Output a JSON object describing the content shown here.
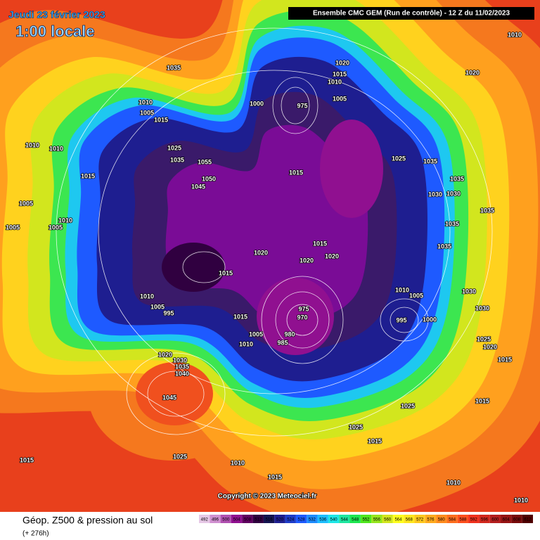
{
  "header": {
    "date": "Jeudi 23 février 2023",
    "time": "1:00 locale",
    "run": "Ensemble CMC GEM  (Run de contrôle)  - 12 Z du 11/02/2023"
  },
  "copyright": "Copyright © 2023 Meteociel.fr",
  "legend": {
    "title": "Géop. Z500 & pression au sol",
    "lead": "(+ 276h)",
    "ticks": [
      492,
      496,
      500,
      504,
      508,
      512,
      516,
      520,
      524,
      528,
      532,
      536,
      540,
      544,
      548,
      552,
      556,
      560,
      564,
      568,
      572,
      576,
      580,
      584,
      588,
      592,
      596,
      600,
      604,
      608,
      612
    ],
    "colors": [
      "#e6c8e6",
      "#d090d0",
      "#b050b0",
      "#901090",
      "#600060",
      "#300040",
      "#141450",
      "#1e1e90",
      "#1e3cc8",
      "#1e5aff",
      "#1e8cff",
      "#1ebeff",
      "#1ee6e6",
      "#1ee6a0",
      "#1ee650",
      "#50e61e",
      "#96e61e",
      "#d2e61e",
      "#ffff1e",
      "#ffe61e",
      "#ffc81e",
      "#ffaa1e",
      "#ff8c1e",
      "#ff6e1e",
      "#ff501e",
      "#f0321e",
      "#d2281e",
      "#b41e1e",
      "#961414",
      "#780a0a",
      "#500000"
    ]
  },
  "pressure_labels": [
    1010,
    1020,
    1035,
    1020,
    1015,
    1010,
    1005,
    1000,
    975,
    1010,
    1005,
    1015,
    1010,
    1010,
    1025,
    1035,
    1055,
    1015,
    1025,
    1035,
    1035,
    1030,
    1030,
    1005,
    1005,
    1010,
    1005,
    1050,
    1045,
    1015,
    1035,
    1035,
    1035,
    1015,
    1020,
    1020,
    1020,
    1015,
    1010,
    1005,
    995,
    1015,
    975,
    970,
    1005,
    980,
    985,
    1010,
    1010,
    1005,
    1030,
    1030,
    995,
    1000,
    1025,
    1020,
    1015,
    1020,
    1030,
    1035,
    1040,
    1045,
    1025,
    1015,
    1025,
    1015,
    1025,
    1010,
    1015,
    1015,
    1010,
    1010
  ]
}
